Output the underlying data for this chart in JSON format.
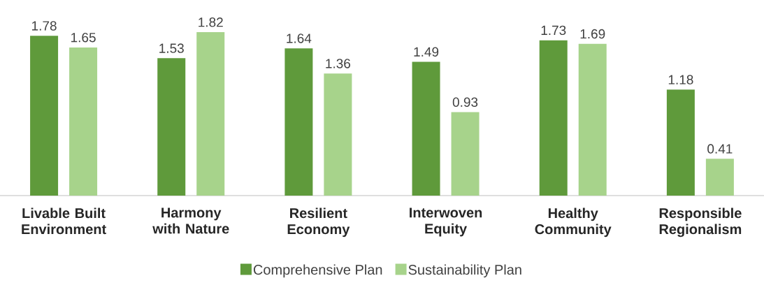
{
  "chart_data": {
    "type": "bar",
    "categories": [
      "Livable Built Environment",
      "Harmony with Nature",
      "Resilient Economy",
      "Interwoven Equity",
      "Healthy Community",
      "Responsible Regionalism"
    ],
    "series": [
      {
        "name": "Comprehensive Plan",
        "color": "#5f9a3b",
        "values": [
          1.78,
          1.53,
          1.64,
          1.49,
          1.73,
          1.18
        ]
      },
      {
        "name": "Sustainability Plan",
        "color": "#a7d38b",
        "values": [
          1.65,
          1.82,
          1.36,
          0.93,
          1.69,
          0.41
        ]
      }
    ],
    "data_labels": true,
    "legend": "bottom"
  }
}
